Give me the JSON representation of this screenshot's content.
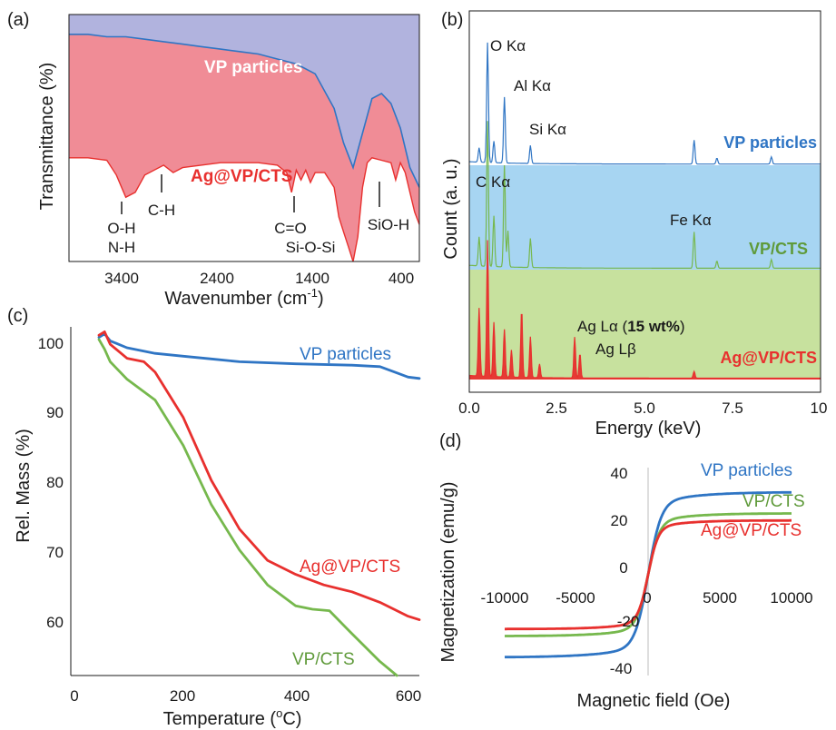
{
  "colors": {
    "vp": "#2f75c4",
    "vpcts": "#76b84d",
    "ag": "#e8302e",
    "ftir_top_fill": "#b1b3de",
    "ftir_bottom_fill": "#f08c96",
    "eds_vp_fill": "#a7d5f2",
    "eds_vpcts_fill": "#c7e19e",
    "axis": "#1a1a1a",
    "zero_line": "#c8c8c8"
  },
  "panels": {
    "a": {
      "label": "(a)",
      "ylabel": "Transmittance (%)",
      "xlabel_main": "Wavenumber (cm",
      "xlabel_sup": "-1",
      "xlabel_end": ")",
      "xticks": [
        "3400",
        "2400",
        "1400",
        "400"
      ],
      "series_labels": {
        "vp": "VP particles",
        "ag": "Ag@VP/CTS"
      },
      "annotations": [
        {
          "line1": "O-H",
          "line2": "N-H"
        },
        {
          "line1": "C-H",
          "line2": ""
        },
        {
          "line1": "C=O",
          "line2": "Si-O-Si"
        },
        {
          "line1": "SiO-H",
          "line2": ""
        }
      ]
    },
    "b": {
      "label": "(b)",
      "ylabel": "Count (a. u.)",
      "xlabel": "Energy (keV)",
      "xticks": [
        "0.0",
        "2.5",
        "5.0",
        "7.5",
        "10"
      ],
      "series_labels": {
        "vp": "VP particles",
        "vpcts": "VP/CTS",
        "ag": "Ag@VP/CTS"
      },
      "peak_labels": {
        "o": "O Kα",
        "al": "Al Kα",
        "si": "Si Kα",
        "c": "C Kα",
        "fe": "Fe Kα",
        "ag_la_prefix": "Ag Lα (",
        "ag_la_bold": "15 wt%",
        "ag_la_suffix": ")",
        "ag_lb": "Ag Lβ"
      }
    },
    "c": {
      "label": "(c)",
      "ylabel": "Rel. Mass (%)",
      "xlabel_main": "Temperature (",
      "xlabel_sup": "o",
      "xlabel_end": "C)",
      "yticks": [
        "100",
        "90",
        "80",
        "70",
        "60"
      ],
      "xticks": [
        "0",
        "200",
        "400",
        "600"
      ],
      "series_labels": {
        "vp": "VP particles",
        "ag": "Ag@VP/CTS",
        "vpcts": "VP/CTS"
      }
    },
    "d": {
      "label": "(d)",
      "ylabel": "Magnetization (emu/g)",
      "xlabel": "Magnetic field (Oe)",
      "yticks": [
        "40",
        "20",
        "0",
        "-20",
        "-40"
      ],
      "xticks": [
        "-10000",
        "-5000",
        "0",
        "5000",
        "10000"
      ],
      "series_labels": {
        "vp": "VP particles",
        "vpcts": "VP/CTS",
        "ag": "Ag@VP/CTS"
      }
    }
  },
  "chart_data": [
    {
      "panel": "a",
      "type": "area",
      "title": "",
      "xlabel": "Wavenumber (cm-1)",
      "ylabel": "Transmittance (%)",
      "x_reversed": true,
      "xlim": [
        4000,
        300
      ],
      "series": [
        {
          "name": "VP particles",
          "x": [
            4000,
            3800,
            3600,
            3400,
            3200,
            3000,
            2800,
            2600,
            2400,
            2200,
            2000,
            1800,
            1600,
            1400,
            1200,
            1100,
            1000,
            900,
            800,
            700,
            600,
            500,
            400,
            300
          ],
          "y": [
            0.92,
            0.92,
            0.91,
            0.91,
            0.9,
            0.89,
            0.88,
            0.87,
            0.86,
            0.85,
            0.84,
            0.82,
            0.8,
            0.76,
            0.62,
            0.48,
            0.38,
            0.52,
            0.66,
            0.68,
            0.64,
            0.54,
            0.38,
            0.3
          ]
        },
        {
          "name": "Ag@VP/CTS",
          "x": [
            4000,
            3800,
            3600,
            3500,
            3400,
            3300,
            3200,
            3000,
            2900,
            2800,
            2400,
            2000,
            1800,
            1700,
            1650,
            1600,
            1550,
            1500,
            1450,
            1400,
            1300,
            1200,
            1150,
            1100,
            1050,
            1000,
            950,
            900,
            850,
            800,
            700,
            600,
            550,
            500,
            450,
            400,
            350,
            300
          ],
          "y": [
            0.42,
            0.42,
            0.41,
            0.35,
            0.26,
            0.28,
            0.35,
            0.39,
            0.36,
            0.38,
            0.4,
            0.4,
            0.39,
            0.36,
            0.28,
            0.37,
            0.33,
            0.37,
            0.32,
            0.36,
            0.36,
            0.3,
            0.18,
            0.12,
            0.06,
            0.0,
            0.1,
            0.3,
            0.4,
            0.42,
            0.41,
            0.4,
            0.33,
            0.4,
            0.36,
            0.28,
            0.2,
            0.15
          ]
        }
      ]
    },
    {
      "panel": "b",
      "type": "line",
      "title": "",
      "xlabel": "Energy (keV)",
      "ylabel": "Count (a. u.)",
      "xlim": [
        0,
        10
      ],
      "series": [
        {
          "name": "VP particles",
          "peaks": [
            {
              "x": 0.28,
              "h": 0.12
            },
            {
              "x": 0.52,
              "h": 1.0
            },
            {
              "x": 0.7,
              "h": 0.18
            },
            {
              "x": 1.0,
              "h": 0.55
            },
            {
              "x": 1.74,
              "h": 0.15
            },
            {
              "x": 6.4,
              "h": 0.2
            },
            {
              "x": 7.05,
              "h": 0.05
            },
            {
              "x": 8.6,
              "h": 0.06
            }
          ]
        },
        {
          "name": "VP/CTS",
          "peaks": [
            {
              "x": 0.28,
              "h": 0.2
            },
            {
              "x": 0.52,
              "h": 1.0
            },
            {
              "x": 0.7,
              "h": 0.35
            },
            {
              "x": 1.0,
              "h": 0.7
            },
            {
              "x": 1.1,
              "h": 0.25
            },
            {
              "x": 1.74,
              "h": 0.2
            },
            {
              "x": 6.4,
              "h": 0.25
            },
            {
              "x": 7.05,
              "h": 0.05
            },
            {
              "x": 8.6,
              "h": 0.06
            }
          ]
        },
        {
          "name": "Ag@VP/CTS",
          "peaks": [
            {
              "x": 0.28,
              "h": 0.5
            },
            {
              "x": 0.52,
              "h": 1.0
            },
            {
              "x": 0.7,
              "h": 0.4
            },
            {
              "x": 1.0,
              "h": 0.35
            },
            {
              "x": 1.2,
              "h": 0.2
            },
            {
              "x": 1.49,
              "h": 0.5
            },
            {
              "x": 1.74,
              "h": 0.3
            },
            {
              "x": 2.0,
              "h": 0.1
            },
            {
              "x": 3.0,
              "h": 0.3
            },
            {
              "x": 3.15,
              "h": 0.18
            },
            {
              "x": 6.4,
              "h": 0.05
            }
          ]
        }
      ]
    },
    {
      "panel": "c",
      "type": "line",
      "title": "",
      "xlabel": "Temperature (oC)",
      "ylabel": "Rel. Mass (%)",
      "xlim": [
        0,
        620
      ],
      "ylim": [
        52,
        102
      ],
      "series": [
        {
          "name": "VP particles",
          "x": [
            50,
            60,
            70,
            100,
            150,
            200,
            250,
            300,
            400,
            500,
            550,
            580,
            600,
            620
          ],
          "y": [
            100.5,
            101.0,
            100.0,
            99.0,
            98.2,
            97.8,
            97.4,
            97.0,
            96.7,
            96.5,
            96.3,
            95.4,
            94.8,
            94.6
          ]
        },
        {
          "name": "Ag@VP/CTS",
          "x": [
            50,
            60,
            70,
            100,
            130,
            150,
            200,
            250,
            300,
            350,
            400,
            450,
            500,
            550,
            600,
            620
          ],
          "y": [
            100.8,
            101.3,
            99.5,
            97.5,
            97.0,
            95.5,
            89.0,
            80.0,
            73.0,
            68.5,
            66.5,
            65.0,
            64.0,
            62.5,
            60.5,
            60.0
          ]
        },
        {
          "name": "VP/CTS",
          "x": [
            50,
            60,
            70,
            100,
            150,
            200,
            250,
            300,
            350,
            400,
            430,
            460,
            500,
            550,
            580
          ],
          "y": [
            100.2,
            98.8,
            97.0,
            94.5,
            91.5,
            85.0,
            76.5,
            70.0,
            65.0,
            62.0,
            61.5,
            61.3,
            58.0,
            54.0,
            51.0
          ]
        }
      ]
    },
    {
      "panel": "d",
      "type": "line",
      "title": "",
      "xlabel": "Magnetic field (Oe)",
      "ylabel": "Magnetization (emu/g)",
      "xlim": [
        -11000,
        11000
      ],
      "ylim": [
        -45,
        45
      ],
      "series": [
        {
          "name": "VP particles",
          "ms": 35,
          "h0": 900
        },
        {
          "name": "VP/CTS",
          "ms": 26,
          "h0": 800
        },
        {
          "name": "Ag@VP/CTS",
          "ms": 23,
          "h0": 700
        }
      ]
    }
  ]
}
